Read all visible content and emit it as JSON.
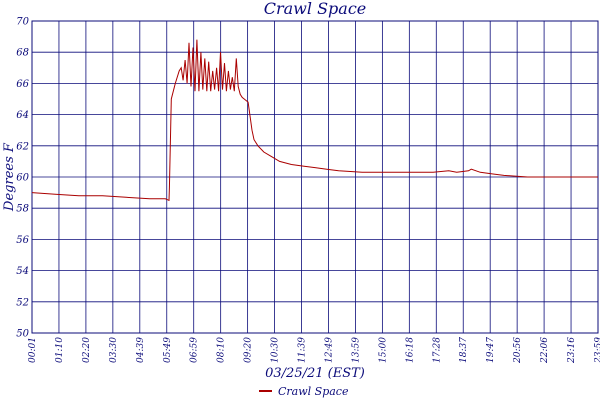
{
  "chart_data": {
    "type": "line",
    "title": "Crawl Space",
    "xlabel": "03/25/21 (EST)",
    "ylabel": "Degrees F",
    "ylim": [
      50,
      70
    ],
    "yticks": [
      50,
      52,
      54,
      56,
      58,
      60,
      62,
      64,
      66,
      68,
      70
    ],
    "x_tick_labels": [
      "00:01",
      "01:10",
      "02:20",
      "03:30",
      "04:39",
      "05:49",
      "06:59",
      "08:10",
      "09:20",
      "10:30",
      "11:39",
      "12:49",
      "13:59",
      "15:00",
      "16:18",
      "17:28",
      "18:37",
      "19:47",
      "20:56",
      "22:06",
      "23:16",
      "23:59"
    ],
    "grid": true,
    "legend_position": "bottom",
    "series": [
      {
        "name": "Crawl Space",
        "color": "#aa0000",
        "x": [
          "00:01",
          "01:00",
          "02:00",
          "03:00",
          "04:00",
          "05:00",
          "05:40",
          "05:49",
          "05:50",
          "05:55",
          "06:05",
          "06:15",
          "06:20",
          "06:25",
          "06:30",
          "06:35",
          "06:40",
          "06:45",
          "06:50",
          "06:55",
          "07:00",
          "07:05",
          "07:10",
          "07:15",
          "07:20",
          "07:25",
          "07:30",
          "07:35",
          "07:40",
          "07:45",
          "07:50",
          "07:55",
          "08:00",
          "08:05",
          "08:10",
          "08:15",
          "08:20",
          "08:25",
          "08:30",
          "08:35",
          "08:40",
          "08:45",
          "08:50",
          "08:55",
          "09:00",
          "09:10",
          "09:20",
          "09:25",
          "09:35",
          "09:50",
          "10:10",
          "10:30",
          "11:00",
          "11:30",
          "12:00",
          "12:30",
          "13:00",
          "14:00",
          "15:00",
          "16:00",
          "17:00",
          "17:40",
          "18:00",
          "18:30",
          "18:37",
          "19:00",
          "19:30",
          "20:00",
          "21:00",
          "22:00",
          "23:00",
          "23:30",
          "23:59"
        ],
        "values": [
          59.0,
          58.9,
          58.8,
          58.8,
          58.7,
          58.6,
          58.6,
          58.5,
          59.3,
          65.0,
          66.0,
          66.8,
          67.0,
          66.2,
          67.5,
          66.0,
          68.6,
          65.8,
          68.3,
          65.5,
          68.8,
          65.5,
          68.0,
          65.6,
          67.6,
          65.5,
          67.4,
          65.5,
          66.8,
          65.6,
          67.0,
          65.5,
          68.0,
          65.6,
          67.3,
          65.5,
          66.8,
          65.6,
          66.4,
          65.5,
          67.6,
          65.8,
          65.3,
          65.1,
          65.0,
          64.8,
          63.0,
          62.4,
          62.0,
          61.6,
          61.3,
          61.0,
          60.8,
          60.7,
          60.6,
          60.5,
          60.4,
          60.3,
          60.3,
          60.3,
          60.3,
          60.4,
          60.3,
          60.4,
          60.5,
          60.3,
          60.2,
          60.1,
          60.0,
          60.0,
          60.0,
          60.0,
          60.0
        ]
      }
    ]
  }
}
